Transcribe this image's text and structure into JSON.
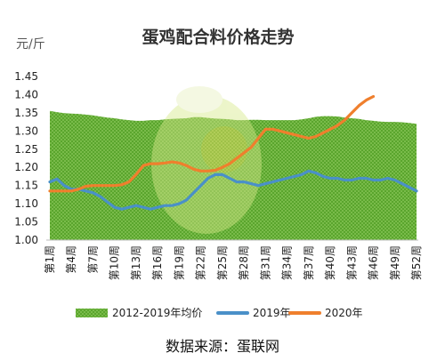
{
  "chart_data": {
    "type": "area",
    "title": "蛋鸡配合料价格走势",
    "unit_label": "元/斤",
    "ylim": [
      1.0,
      1.45
    ],
    "yticks": [
      "1.00",
      "1.05",
      "1.10",
      "1.15",
      "1.20",
      "1.25",
      "1.30",
      "1.35",
      "1.40",
      "1.45"
    ],
    "xticks": [
      "第1周",
      "第4周",
      "第7周",
      "第10周",
      "第13周",
      "第16周",
      "第19周",
      "第22周",
      "第25周",
      "第28周",
      "第31周",
      "第34周",
      "第37周",
      "第40周",
      "第43周",
      "第46周",
      "第49周",
      "第52周"
    ],
    "weeks": 52,
    "series": [
      {
        "name": "2012-2019年均价",
        "kind": "area",
        "color": "#6fb43a",
        "values": [
          1.355,
          1.352,
          1.349,
          1.348,
          1.347,
          1.345,
          1.343,
          1.34,
          1.337,
          1.335,
          1.332,
          1.33,
          1.328,
          1.328,
          1.33,
          1.33,
          1.332,
          1.333,
          1.334,
          1.335,
          1.338,
          1.338,
          1.336,
          1.334,
          1.333,
          1.332,
          1.33,
          1.33,
          1.331,
          1.331,
          1.33,
          1.33,
          1.33,
          1.33,
          1.33,
          1.332,
          1.335,
          1.339,
          1.341,
          1.341,
          1.34,
          1.337,
          1.335,
          1.333,
          1.33,
          1.328,
          1.326,
          1.325,
          1.325,
          1.324,
          1.322,
          1.32
        ]
      },
      {
        "name": "2019年",
        "kind": "line",
        "color": "#4a90c8",
        "values": [
          1.16,
          1.168,
          1.15,
          1.14,
          1.14,
          1.135,
          1.13,
          1.12,
          1.105,
          1.09,
          1.085,
          1.09,
          1.095,
          1.09,
          1.085,
          1.09,
          1.095,
          1.095,
          1.1,
          1.11,
          1.13,
          1.15,
          1.17,
          1.18,
          1.18,
          1.17,
          1.16,
          1.16,
          1.155,
          1.15,
          1.155,
          1.16,
          1.165,
          1.17,
          1.175,
          1.18,
          1.19,
          1.185,
          1.175,
          1.17,
          1.17,
          1.165,
          1.165,
          1.17,
          1.17,
          1.165,
          1.165,
          1.17,
          1.165,
          1.155,
          1.145,
          1.135
        ]
      },
      {
        "name": "2020年",
        "kind": "line",
        "color": "#ef7f2d",
        "values": [
          1.135,
          1.135,
          1.135,
          1.135,
          1.14,
          1.148,
          1.15,
          1.15,
          1.15,
          1.15,
          1.152,
          1.16,
          1.18,
          1.205,
          1.21,
          1.21,
          1.212,
          1.215,
          1.212,
          1.205,
          1.195,
          1.19,
          1.19,
          1.192,
          1.2,
          1.21,
          1.225,
          1.24,
          1.255,
          1.28,
          1.305,
          1.305,
          1.3,
          1.295,
          1.29,
          1.285,
          1.28,
          1.285,
          1.295,
          1.305,
          1.315,
          1.33,
          1.35,
          1.37,
          1.385,
          1.395
        ]
      }
    ],
    "legend_position": "bottom",
    "source": "数据来源：蛋联网"
  }
}
